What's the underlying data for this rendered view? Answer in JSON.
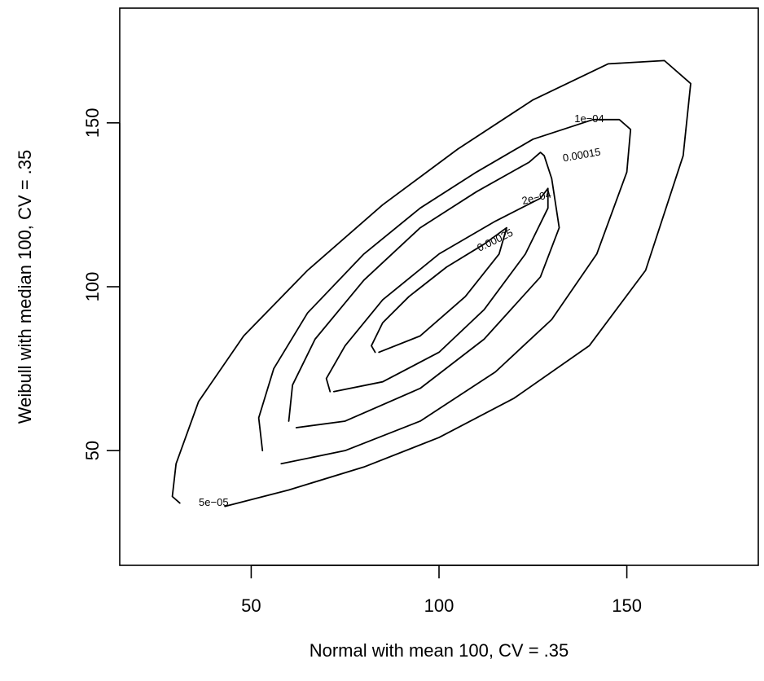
{
  "chart_data": {
    "type": "contour",
    "title": "",
    "xlabel": "Normal with mean 100, CV = .35",
    "ylabel": "Weibull with median 100, CV = .35",
    "xlim": [
      15,
      185
    ],
    "ylim": [
      15,
      185
    ],
    "xticks": [
      50,
      100,
      150
    ],
    "yticks": [
      50,
      100,
      150
    ],
    "grid": false,
    "contours": [
      {
        "level_label": "5e−05",
        "points": [
          [
            43,
            33
          ],
          [
            60,
            38
          ],
          [
            80,
            45
          ],
          [
            100,
            54
          ],
          [
            120,
            66
          ],
          [
            140,
            82
          ],
          [
            155,
            105
          ],
          [
            165,
            140
          ],
          [
            167,
            162
          ],
          [
            160,
            169
          ],
          [
            145,
            168
          ],
          [
            125,
            157
          ],
          [
            105,
            142
          ],
          [
            85,
            125
          ],
          [
            65,
            105
          ],
          [
            48,
            85
          ],
          [
            36,
            65
          ],
          [
            30,
            46
          ],
          [
            29,
            36
          ],
          [
            31,
            34
          ]
        ]
      },
      {
        "level_label": "1e−04",
        "points": [
          [
            58,
            46
          ],
          [
            75,
            50
          ],
          [
            95,
            59
          ],
          [
            115,
            74
          ],
          [
            130,
            90
          ],
          [
            142,
            110
          ],
          [
            150,
            135
          ],
          [
            151,
            148
          ],
          [
            148,
            151
          ],
          [
            141,
            151
          ],
          [
            125,
            145
          ],
          [
            110,
            135
          ],
          [
            95,
            124
          ],
          [
            80,
            110
          ],
          [
            65,
            92
          ],
          [
            56,
            75
          ],
          [
            52,
            60
          ],
          [
            53,
            50
          ]
        ]
      },
      {
        "level_label": "0.00015",
        "points": [
          [
            62,
            57
          ],
          [
            75,
            59
          ],
          [
            95,
            69
          ],
          [
            112,
            84
          ],
          [
            127,
            103
          ],
          [
            132,
            118
          ],
          [
            130,
            133
          ],
          [
            128,
            140
          ],
          [
            127,
            141
          ],
          [
            124,
            138
          ],
          [
            110,
            129
          ],
          [
            95,
            118
          ],
          [
            80,
            102
          ],
          [
            67,
            84
          ],
          [
            61,
            70
          ],
          [
            60,
            59
          ]
        ]
      },
      {
        "level_label": "2e−04",
        "points": [
          [
            72,
            68
          ],
          [
            85,
            71
          ],
          [
            100,
            80
          ],
          [
            112,
            93
          ],
          [
            123,
            110
          ],
          [
            129,
            124
          ],
          [
            129,
            130
          ],
          [
            127,
            127
          ],
          [
            115,
            120
          ],
          [
            100,
            110
          ],
          [
            85,
            96
          ],
          [
            75,
            82
          ],
          [
            70,
            72
          ],
          [
            71,
            68
          ]
        ]
      },
      {
        "level_label": "0.00025",
        "points": [
          [
            84,
            80
          ],
          [
            95,
            85
          ],
          [
            107,
            97
          ],
          [
            116,
            110
          ],
          [
            118,
            118
          ],
          [
            112,
            113
          ],
          [
            102,
            106
          ],
          [
            92,
            97
          ],
          [
            85,
            89
          ],
          [
            82,
            82
          ],
          [
            83,
            80
          ]
        ]
      }
    ],
    "contour_label_positions": [
      [
        40,
        34
      ],
      [
        140,
        151
      ],
      [
        138,
        140
      ],
      [
        126,
        127
      ],
      [
        115,
        114
      ]
    ]
  }
}
